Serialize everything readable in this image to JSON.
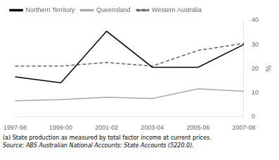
{
  "chart_data": {
    "type": "line",
    "categories": [
      "1997-98",
      "1999-00",
      "2001-02",
      "2003-04",
      "2005-06",
      "2007-08"
    ],
    "series": [
      {
        "name": "Northern Territory",
        "color": "#000000",
        "line_style": "solid",
        "values": [
          16.5,
          14.0,
          35.5,
          20.5,
          20.5,
          30.0
        ]
      },
      {
        "name": "Queensland",
        "color": "#aaaaaa",
        "line_style": "solid",
        "values": [
          6.5,
          7.0,
          8.0,
          7.5,
          11.5,
          10.5
        ]
      },
      {
        "name": "Western Australia",
        "color": "#666666",
        "line_style": "dashed",
        "values": [
          21.0,
          21.0,
          22.5,
          21.0,
          27.5,
          30.5
        ]
      }
    ],
    "y_label": "%",
    "ylim": [
      0,
      40
    ],
    "yticks": [
      0,
      10,
      20,
      30,
      40
    ],
    "grid": false,
    "legend": "upper left",
    "annotations": [
      "(a) State production as measured by total factor income at current prices.",
      "Source: ABS Australian National Accounts: State Accounts (5220.0)."
    ]
  }
}
